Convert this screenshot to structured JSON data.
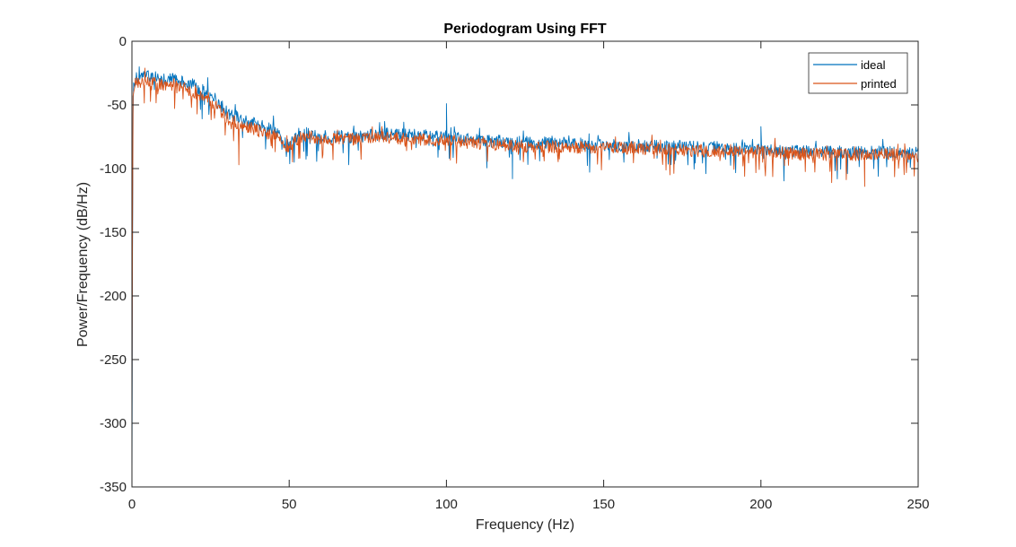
{
  "chart_data": {
    "type": "line",
    "title": "Periodogram Using FFT",
    "xlabel": "Frequency (Hz)",
    "ylabel": "Power/Frequency (dB/Hz)",
    "xlim": [
      0,
      250
    ],
    "ylim": [
      -350,
      0
    ],
    "xticks": [
      0,
      50,
      100,
      150,
      200,
      250
    ],
    "yticks": [
      0,
      -50,
      -100,
      -150,
      -200,
      -250,
      -300,
      -350
    ],
    "grid": false,
    "legend_position": "top-right",
    "series": [
      {
        "name": "ideal",
        "color": "#0072BD",
        "envelope": {
          "x": [
            0,
            0.3,
            1,
            2,
            5,
            10,
            15,
            20,
            25,
            30,
            35,
            40,
            45,
            48,
            50,
            52,
            55,
            60,
            70,
            80,
            90,
            100,
            110,
            120,
            130,
            140,
            150,
            160,
            170,
            180,
            190,
            200,
            210,
            220,
            230,
            240,
            250
          ],
          "y": [
            -350,
            -40,
            -30,
            -28,
            -27,
            -29,
            -31,
            -35,
            -42,
            -55,
            -62,
            -66,
            -70,
            -78,
            -82,
            -76,
            -72,
            -75,
            -75,
            -73,
            -74,
            -75,
            -78,
            -79,
            -80,
            -80,
            -81,
            -82,
            -82,
            -83,
            -84,
            -85,
            -86,
            -87,
            -87,
            -87,
            -88
          ]
        },
        "spikes": [
          {
            "x": 100,
            "y": -49
          },
          {
            "x": 200,
            "y": -67
          },
          {
            "x": 121,
            "y": -108
          }
        ]
      },
      {
        "name": "printed",
        "color": "#D95319",
        "envelope": {
          "x": [
            0,
            0.3,
            1,
            2,
            5,
            10,
            15,
            20,
            25,
            30,
            35,
            40,
            45,
            48,
            50,
            52,
            55,
            60,
            70,
            80,
            90,
            100,
            110,
            120,
            130,
            140,
            150,
            160,
            170,
            180,
            190,
            200,
            210,
            220,
            230,
            240,
            250
          ],
          "y": [
            -300,
            -42,
            -34,
            -33,
            -33,
            -34,
            -36,
            -40,
            -46,
            -60,
            -66,
            -70,
            -73,
            -80,
            -83,
            -78,
            -74,
            -77,
            -77,
            -76,
            -77,
            -78,
            -80,
            -82,
            -83,
            -83,
            -84,
            -84,
            -85,
            -86,
            -86,
            -87,
            -88,
            -89,
            -89,
            -89,
            -90
          ]
        },
        "spikes": [
          {
            "x": 233,
            "y": -114
          },
          {
            "x": 34,
            "y": -97
          }
        ]
      }
    ]
  }
}
